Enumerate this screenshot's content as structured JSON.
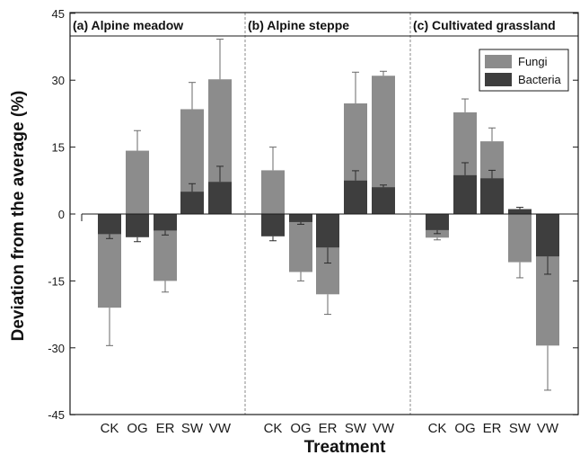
{
  "chart_data": {
    "type": "bar",
    "xlabel": "Treatment",
    "ylabel": "Deviation from the average (%)",
    "ylim": [
      -45,
      45
    ],
    "yticks": [
      "45",
      "30",
      "15",
      "0",
      "-15",
      "-30",
      "-45"
    ],
    "categories": [
      "CK",
      "OG",
      "ER",
      "SW",
      "VW"
    ],
    "legend": {
      "position": "top-right",
      "entries": [
        "Fungi",
        "Bacteria"
      ]
    },
    "colors": {
      "Fungi": "#8c8c8c",
      "Bacteria": "#3e3e3e",
      "axis": "#1a1a1a",
      "divider": "#888888"
    },
    "panels": [
      {
        "title": "(a) Alpine meadow",
        "series": [
          {
            "name": "Fungi",
            "values": [
              -21,
              14.2,
              -15,
              23.5,
              30.2
            ],
            "errors": [
              8.5,
              4.5,
              2.5,
              6,
              9
            ]
          },
          {
            "name": "Bacteria",
            "values": [
              -4.5,
              -5.2,
              -3.7,
              5,
              7.2
            ],
            "errors": [
              1,
              1,
              1,
              1.8,
              3.5
            ]
          }
        ]
      },
      {
        "title": "(b) Alpine steppe",
        "series": [
          {
            "name": "Fungi",
            "values": [
              9.8,
              -13,
              -18,
              24.8,
              31
            ],
            "errors": [
              5.2,
              2,
              4.5,
              7,
              1
            ]
          },
          {
            "name": "Bacteria",
            "values": [
              -5,
              -1.8,
              -7.5,
              7.5,
              6
            ],
            "errors": [
              1,
              0.5,
              3.5,
              2.2,
              0.5
            ]
          }
        ]
      },
      {
        "title": "(c) Cultivated grassland",
        "series": [
          {
            "name": "Fungi",
            "values": [
              -5.3,
              22.8,
              16.3,
              -10.8,
              -29.5
            ],
            "errors": [
              0.5,
              3,
              3,
              3.5,
              10
            ]
          },
          {
            "name": "Bacteria",
            "values": [
              -3.6,
              8.7,
              8,
              1.1,
              -9.5
            ],
            "errors": [
              0.8,
              2.8,
              1.8,
              0.4,
              4
            ]
          }
        ]
      }
    ]
  }
}
